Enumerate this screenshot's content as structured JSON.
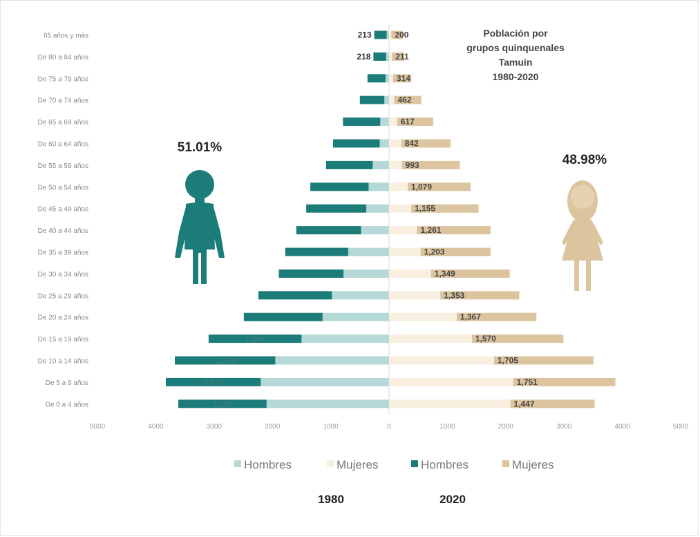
{
  "chart_data": {
    "type": "bar",
    "orientation": "horizontal",
    "layout": "population pyramid",
    "title_lines": [
      "Población por",
      "grupos quinquenales",
      "Tamuín",
      "1980-2020"
    ],
    "categories": [
      "65 años y más",
      "De 80 a 84 años",
      "De 75 a 79 años",
      "De 70 a 74 años",
      "De 65 a 69 años",
      "De 60 a 64 años",
      "De 55 a 59 años",
      "De 50 a 54 años",
      "De 45 a 49 años",
      "De 40 a 44 años",
      "De 35 a 39 años",
      "De 30 a 34 años",
      "De 25 a 29 años",
      "De 20 a 24 años",
      "De 15 a 19 años",
      "De 10 a 14 años",
      "De 5 a 9 años",
      "De 0 a 4 años"
    ],
    "series": [
      {
        "name": "Hombres",
        "year": "1980",
        "side": "left",
        "color": "#b4d9d6",
        "values": [
          40,
          50,
          60,
          80,
          150,
          160,
          280,
          350,
          390,
          480,
          700,
          780,
          980,
          1140,
          1500,
          1950,
          2200,
          2100
        ]
      },
      {
        "name": "Mujeres",
        "year": "1980",
        "side": "right",
        "color": "#f8efe1",
        "values": [
          40,
          50,
          70,
          90,
          140,
          210,
          220,
          320,
          380,
          480,
          540,
          720,
          880,
          1160,
          1420,
          1800,
          2130,
          2080
        ]
      },
      {
        "name": "Hombres",
        "year": "2020",
        "side": "left",
        "color": "#1c7c79",
        "values": [
          213,
          218,
          310,
          420,
          640,
          800,
          800,
          1000,
          1030,
          1110,
          1080,
          1110,
          1260,
          1350,
          1594,
          1723,
          1627,
          1513
        ]
      },
      {
        "name": "Mujeres",
        "year": "2020",
        "side": "right",
        "color": "#dcc49f",
        "values": [
          200,
          211,
          314,
          462,
          617,
          842,
          993,
          1079,
          1155,
          1261,
          1203,
          1349,
          1353,
          1367,
          1570,
          1705,
          1751,
          1447
        ]
      }
    ],
    "data_labels": {
      "hombres_2020": [
        "213",
        "218",
        "",
        "",
        "",
        "",
        "",
        "",
        "",
        "",
        "",
        "",
        "",
        "",
        "1,594",
        "1,723",
        "1,627",
        "1,513"
      ],
      "mujeres_2020": [
        "200",
        "211",
        "314",
        "462",
        "617",
        "842",
        "993",
        "1,079",
        "1,155",
        "1,261",
        "1,203",
        "1,349",
        "1,353",
        "1,367",
        "1,570",
        "1,705",
        "1,751",
        "1,447"
      ]
    },
    "xticks": [
      "5000",
      "4000",
      "3000",
      "2000",
      "1000",
      "0",
      "1000",
      "2000",
      "3000",
      "4000",
      "5000"
    ],
    "xlim": [
      -5000,
      5000
    ],
    "grid": false,
    "legend_position": "bottom",
    "legend": [
      "Hombres",
      "Mujeres",
      "Hombres",
      "Mujeres"
    ],
    "year_labels": [
      "1980",
      "2020"
    ],
    "percentages": {
      "hombres": "51.01%",
      "mujeres": "48.98%"
    },
    "colors": {
      "boy": "#1c7c79",
      "girl": "#dcc49f",
      "axis": "#d8d8d8"
    }
  }
}
